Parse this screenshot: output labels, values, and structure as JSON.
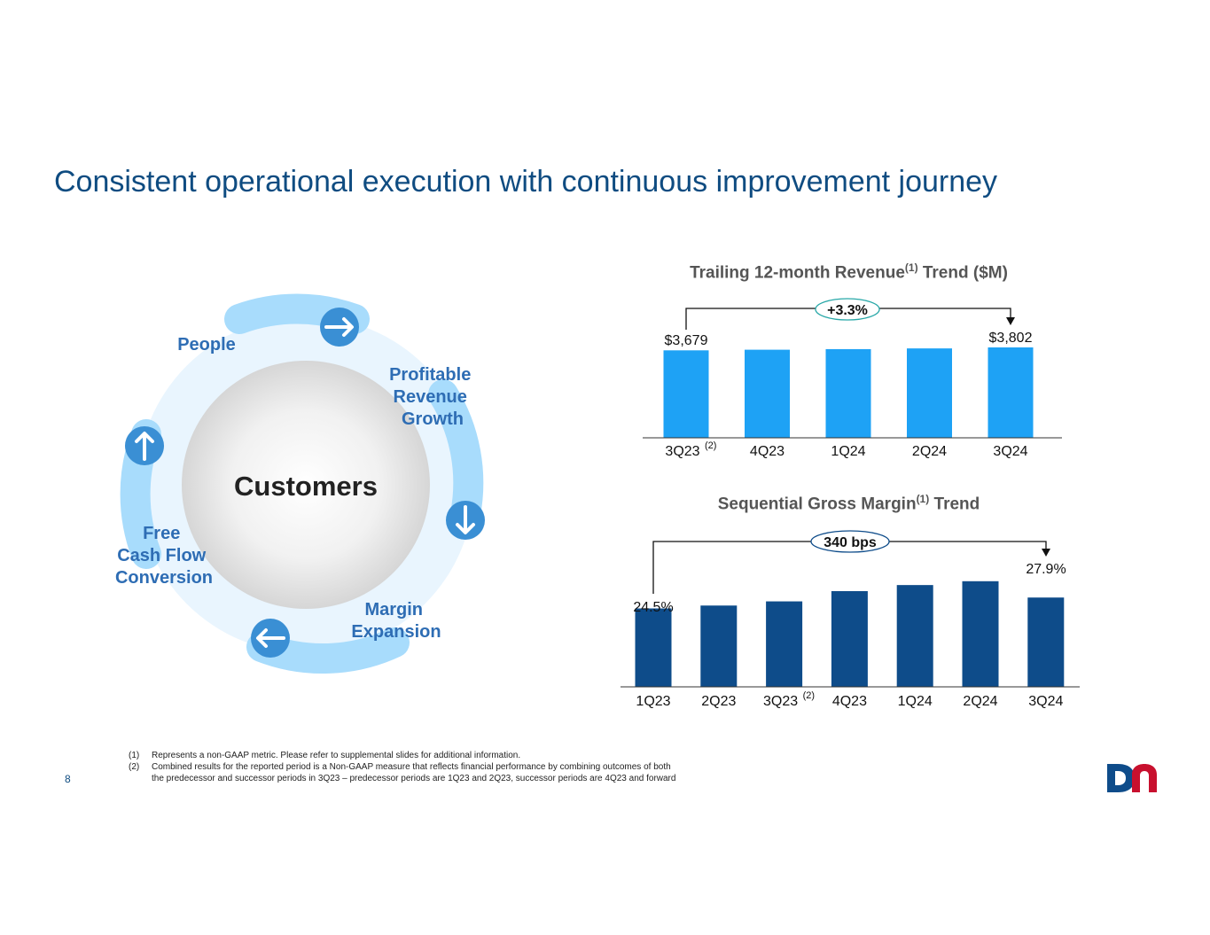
{
  "title": "Consistent operational execution with continuous improvement journey",
  "page_number": "8",
  "cycle": {
    "center": "Customers",
    "labels": {
      "people": "People",
      "profitable": [
        "Profitable",
        "Revenue",
        "Growth"
      ],
      "margin": [
        "Margin",
        "Expansion"
      ],
      "fcf": [
        "Free",
        "Cash Flow",
        "Conversion"
      ]
    }
  },
  "revenue_chart": {
    "title": "Trailing 12-month Revenue",
    "title_sup": "(1)",
    "title_suffix": " Trend ($M)",
    "change_label": "+3.3%",
    "first_label": "$3,679",
    "last_label": "$3,802"
  },
  "gm_chart": {
    "title": "Sequential Gross Margin",
    "title_sup": "(1)",
    "title_suffix": " Trend",
    "change_label": "340 bps",
    "first_label": "24.5%",
    "last_label": "27.9%"
  },
  "chart_data": [
    {
      "type": "bar",
      "title": "Trailing 12-month Revenue(1) Trend ($M)",
      "categories": [
        "3Q23",
        "4Q23",
        "1Q24",
        "2Q24",
        "3Q24"
      ],
      "category_sups": [
        "(2)",
        "",
        "",
        "",
        ""
      ],
      "values": [
        3679,
        3705,
        3730,
        3760,
        3802
      ],
      "ylim": [
        0,
        3802
      ],
      "color": "#1ea2f5"
    },
    {
      "type": "bar",
      "title": "Sequential Gross Margin(1) Trend",
      "categories": [
        "1Q23",
        "2Q23",
        "3Q23",
        "4Q23",
        "1Q24",
        "2Q24",
        "3Q24"
      ],
      "category_sups": [
        "",
        "",
        "(2)",
        "",
        "",
        "",
        ""
      ],
      "values": [
        24.5,
        25.4,
        26.7,
        29.9,
        31.8,
        33.0,
        27.9
      ],
      "ylim": [
        0,
        33.5
      ],
      "color": "#0e4c8a"
    }
  ],
  "footnotes": [
    {
      "num": "(1)",
      "text": "Represents a non-GAAP metric.  Please refer to supplemental slides for additional information."
    },
    {
      "num": "(2)",
      "text": "Combined results for the reported period is a Non-GAAP measure that reflects financial performance by combining outcomes of both",
      "cont": "the predecessor and successor periods in 3Q23 – predecessor periods are 1Q23 and 2Q23, successor periods are 4Q23 and forward"
    }
  ],
  "colors": {
    "title": "#0f4c81",
    "revenue_bar": "#1ea2f5",
    "gm_bar": "#0e4c8a",
    "cycle_label": "#2e6db4",
    "logo_blue": "#0e4c8a",
    "logo_red": "#c8102e"
  }
}
